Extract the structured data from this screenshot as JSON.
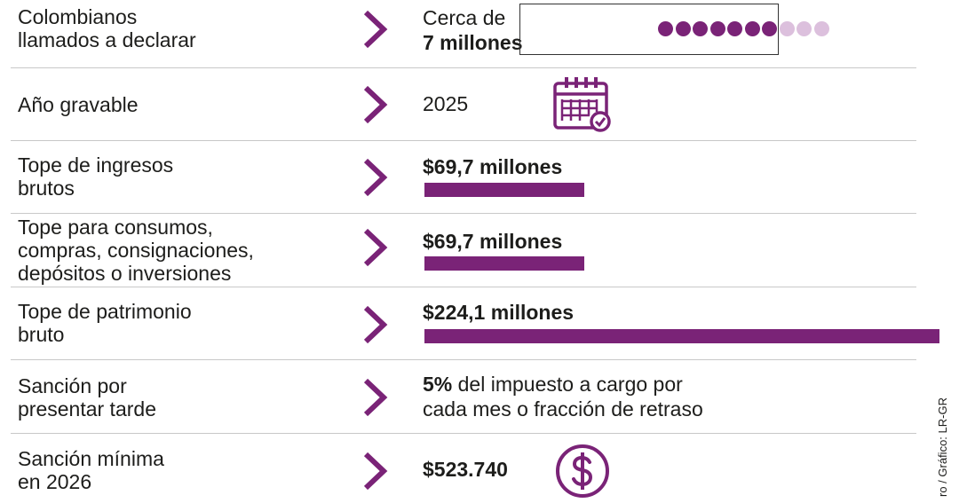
{
  "colors": {
    "accent": "#7a2377",
    "accent_light": "#dcc0dd",
    "text": "#1d1d1b",
    "divider": "#c8c8c8"
  },
  "rows": [
    {
      "label": "Colombianos\nllamados a declarar",
      "value_prefix": "Cerca de",
      "value_bold": "7 millones",
      "icon": "people-dots-icon"
    },
    {
      "label": "Año gravable",
      "value": "2025",
      "icon": "calendar-check-icon"
    },
    {
      "label": "Tope de ingresos\nbrutos",
      "value_bold": "$69,7 millones"
    },
    {
      "label": "Tope para consumos,\ncompras, consignaciones,\ndepósitos o inversiones",
      "value_bold": "$69,7 millones"
    },
    {
      "label": "Tope de patrimonio\nbruto",
      "value_bold": "$224,1 millones"
    },
    {
      "label": "Sanción por\npresentar tarde",
      "value_bold": "5%",
      "value_rest": " del impuesto a cargo por",
      "value_line2": "cada mes o fracción de retraso"
    },
    {
      "label": "Sanción mínima\nen 2026",
      "value_bold": "$523.740",
      "icon": "dollar-coin-icon"
    }
  ],
  "dots": {
    "filled": 7,
    "total": 10
  },
  "chart_data": {
    "type": "bar",
    "orientation": "horizontal",
    "categories": [
      "Tope de ingresos brutos",
      "Tope para consumos, compras, consignaciones, depósitos o inversiones",
      "Tope de patrimonio bruto"
    ],
    "values": [
      69.7,
      69.7,
      224.1
    ],
    "value_labels": [
      "$69,7 millones",
      "$69,7 millones",
      "$224,1 millones"
    ],
    "xlim": [
      0,
      224.1
    ]
  },
  "credit": "ro / Gráfico: LR-GR"
}
